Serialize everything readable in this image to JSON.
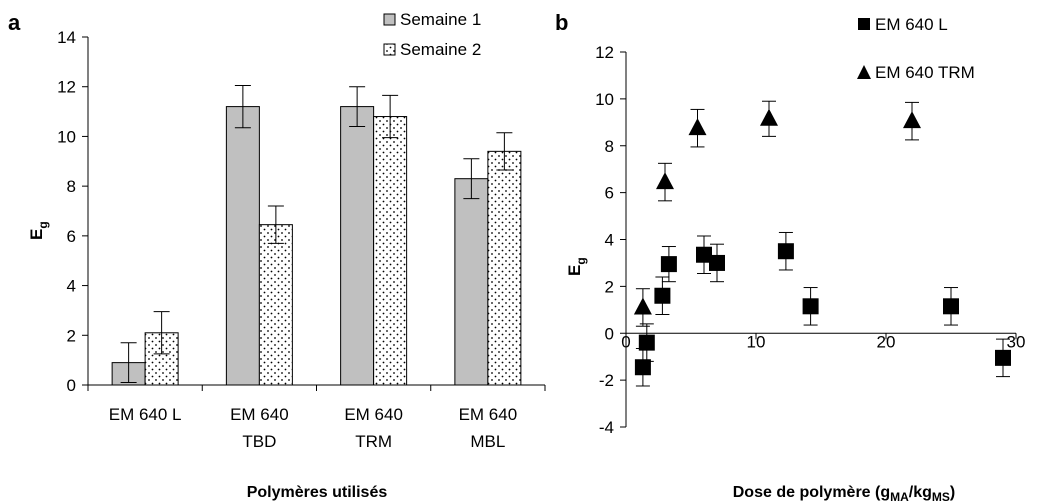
{
  "chart_data": [
    {
      "panel": "a",
      "type": "bar",
      "categories": [
        [
          "EM 640 L"
        ],
        [
          "EM 640",
          "TBD"
        ],
        [
          "EM 640",
          "TRM"
        ],
        [
          "EM 640",
          "MBL"
        ]
      ],
      "series": [
        {
          "name": "Semaine 1",
          "values": [
            0.9,
            11.2,
            11.2,
            8.3
          ],
          "errors": [
            0.8,
            0.85,
            0.8,
            0.8
          ]
        },
        {
          "name": "Semaine 2",
          "values": [
            2.1,
            6.45,
            10.8,
            9.4
          ],
          "errors": [
            0.85,
            0.75,
            0.85,
            0.75
          ]
        }
      ],
      "xlabel": "Polymères utilisés",
      "ylabel": "E",
      "ylabel_sub": "g",
      "ylim": [
        0,
        14
      ],
      "yticks": [
        0,
        2,
        4,
        6,
        8,
        10,
        12,
        14
      ],
      "legend": "top-right"
    },
    {
      "panel": "b",
      "type": "scatter",
      "series": [
        {
          "name": "EM 640 L",
          "marker": "square",
          "x": [
            1.3,
            1.6,
            2.8,
            3.3,
            6.0,
            7.0,
            12.3,
            14.2,
            25.0,
            29.0
          ],
          "y": [
            -1.45,
            -0.4,
            1.6,
            2.95,
            3.35,
            3.0,
            3.5,
            1.15,
            1.15,
            -1.05
          ],
          "errors": [
            0.8,
            0.8,
            0.8,
            0.75,
            0.8,
            0.8,
            0.8,
            0.8,
            0.8,
            0.8
          ]
        },
        {
          "name": "EM 640 TRM",
          "marker": "triangle",
          "x": [
            1.3,
            3.0,
            5.5,
            11.0,
            22.0
          ],
          "y": [
            1.1,
            6.45,
            8.75,
            9.15,
            9.05
          ],
          "errors": [
            0.8,
            0.8,
            0.8,
            0.75,
            0.8
          ]
        }
      ],
      "xlabel_parts": [
        "Dose de polymère (g",
        "MA",
        "/kg",
        "MS",
        ")"
      ],
      "ylabel": "E",
      "ylabel_sub": "g",
      "xlim": [
        0,
        30
      ],
      "ylim": [
        -4,
        12
      ],
      "xticks": [
        0,
        10,
        20,
        30
      ],
      "yticks": [
        -4,
        -2,
        0,
        2,
        4,
        6,
        8,
        10,
        12
      ],
      "legend": "top-right"
    }
  ]
}
